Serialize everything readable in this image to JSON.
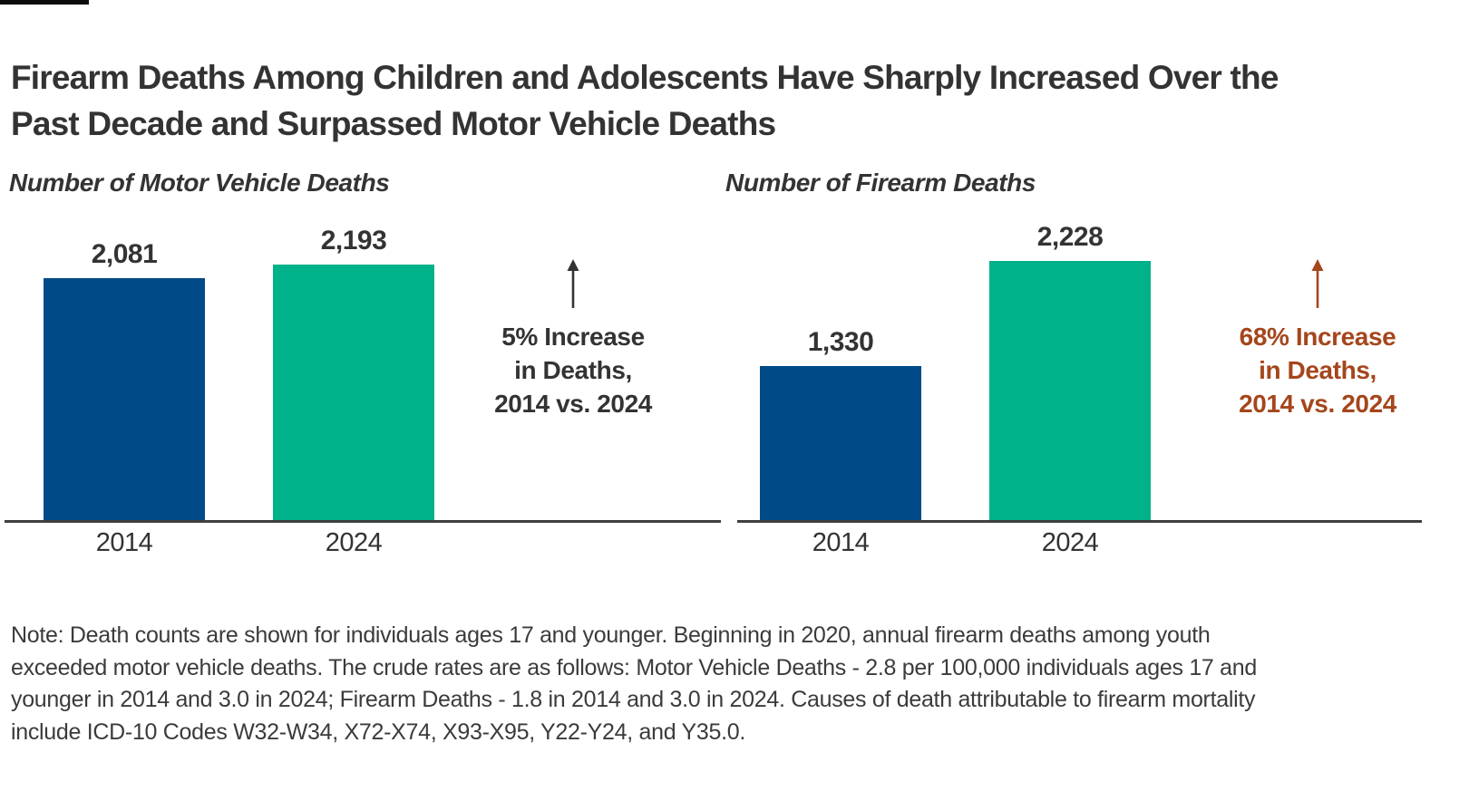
{
  "header": {
    "title_lines": [
      "Firearm Deaths Among Children and Adolescents Have Sharply Increased Over the",
      "Past Decade and Surpassed Motor Vehicle Deaths"
    ]
  },
  "colors": {
    "bar_2014_blue": "#004B87",
    "bar_2024_green": "#00B289",
    "annotation_dark": "#333333",
    "annotation_rust": "#A5461C",
    "axis_line": "#3F3F3F"
  },
  "chart_data": [
    {
      "type": "bar",
      "title": "Number of Motor Vehicle Deaths",
      "categories": [
        "2014",
        "2024"
      ],
      "values": [
        2081,
        2193
      ],
      "value_labels": [
        "2,081",
        "2,193"
      ],
      "bar_colors": [
        "#004B87",
        "#00B289"
      ],
      "ylim": [
        0,
        2400
      ],
      "grid": false,
      "legend": "none",
      "annotation": {
        "arrow": "up",
        "color": "#333333",
        "lines": [
          "5% Increase",
          "in Deaths,",
          "2014 vs. 2024"
        ]
      }
    },
    {
      "type": "bar",
      "title": "Number of Firearm Deaths",
      "categories": [
        "2014",
        "2024"
      ],
      "values": [
        1330,
        2228
      ],
      "value_labels": [
        "1,330",
        "2,228"
      ],
      "bar_colors": [
        "#004B87",
        "#00B289"
      ],
      "ylim": [
        0,
        2400
      ],
      "grid": false,
      "legend": "none",
      "annotation": {
        "arrow": "up",
        "color": "#A5461C",
        "lines": [
          "68% Increase",
          "in Deaths,",
          "2014 vs. 2024"
        ]
      }
    }
  ],
  "note_lines": [
    "Note: Death counts are shown for individuals ages 17 and younger. Beginning in 2020, annual firearm deaths among youth",
    "exceeded motor vehicle deaths. The crude rates are as follows: Motor Vehicle Deaths - 2.8 per 100,000 individuals ages 17 and",
    "younger in 2014 and 3.0 in 2024; Firearm Deaths - 1.8 in 2014 and 3.0 in 2024. Causes of death attributable to firearm mortality",
    "include ICD-10 Codes W32-W34, X72-X74, X93-X95, Y22-Y24, and Y35.0."
  ]
}
